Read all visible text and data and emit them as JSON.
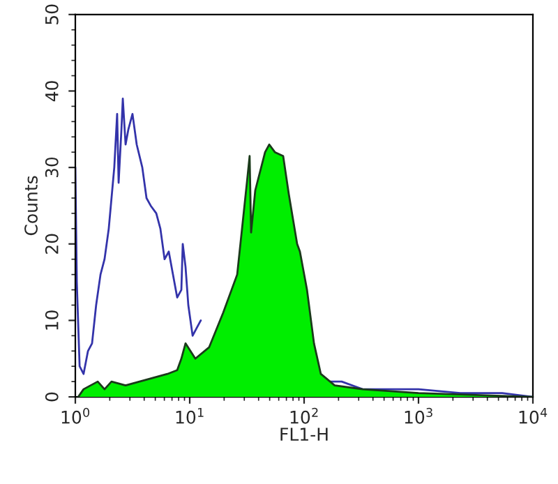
{
  "chart_data": {
    "type": "line",
    "xlabel": "FL1-H",
    "ylabel": "Counts",
    "log": "x",
    "xlim": [
      1,
      10000
    ],
    "ylim": [
      0,
      50
    ],
    "xticks": [
      {
        "value": 1,
        "label": "10$^{0}$"
      },
      {
        "value": 10,
        "label": "10$^{1}$"
      },
      {
        "value": 100,
        "label": "10$^{2}$"
      },
      {
        "value": 1000,
        "label": "10$^{3}$"
      },
      {
        "value": 10000,
        "label": "10$^{4}$"
      }
    ],
    "yticks": [
      0,
      10,
      20,
      30,
      40,
      50
    ],
    "grid": false,
    "legend": false,
    "series": [
      {
        "color": "#3333aa",
        "x": [
          1.0,
          1.03,
          1.09,
          1.18,
          1.29,
          1.4,
          1.52,
          1.66,
          1.8,
          1.96,
          2.19,
          2.32,
          2.39,
          2.53,
          2.6,
          2.75,
          2.91,
          3.16,
          3.44,
          3.85,
          4.19,
          4.56,
          5.1,
          5.54,
          6.03,
          6.56,
          7.14,
          7.77,
          8.45,
          8.69,
          9.19,
          9.72,
          10.6,
          11.5,
          12.5,
          13.6,
          20,
          161,
          213,
          325,
          570,
          1000,
          2320,
          5390,
          10000
        ],
        "values": [
          30,
          15,
          4,
          3,
          6,
          7,
          12,
          16,
          18,
          22,
          30,
          37,
          28,
          35,
          39,
          33,
          35,
          37,
          33,
          30,
          26,
          25,
          24,
          22,
          18,
          19,
          16,
          13,
          14,
          20,
          17,
          12,
          8,
          9,
          10,
          null,
          null,
          2,
          2,
          1,
          1,
          1,
          0.5,
          0.5,
          0
        ]
      },
      {
        "type": "area",
        "color": "#00ee00",
        "x": [
          1.06,
          1.18,
          1.36,
          1.57,
          1.8,
          2.07,
          2.75,
          3.64,
          4.82,
          6.38,
          7.77,
          8.45,
          9.19,
          11.2,
          14.8,
          19.6,
          26.0,
          31.6,
          33.4,
          34.4,
          37.4,
          45.6,
          49.6,
          55.5,
          65.6,
          73.5,
          86.9,
          91.9,
          106,
          122,
          140,
          185,
          325,
          1000,
          10000
        ],
        "values": [
          0,
          1,
          1.5,
          2,
          1,
          2,
          1.5,
          2,
          2.5,
          3,
          3.5,
          5,
          7,
          5,
          6.5,
          11,
          16,
          28,
          31.5,
          21.5,
          27,
          32,
          33,
          32,
          31.5,
          26.5,
          20,
          19,
          14,
          7,
          3,
          1.5,
          1,
          0.5,
          0
        ]
      }
    ]
  }
}
